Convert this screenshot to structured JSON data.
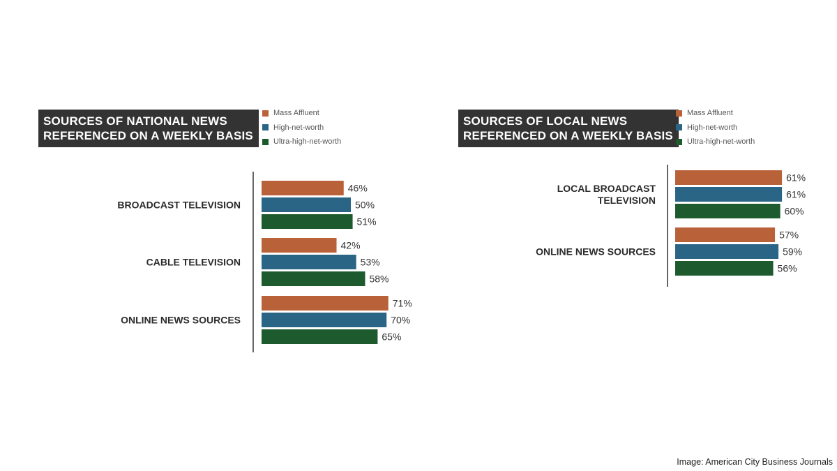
{
  "colors": {
    "mass_affluent": "#b9623a",
    "high_net_worth": "#2a6585",
    "ultra_high_net_worth": "#1d5a2e",
    "title_bg": "#333333",
    "axis": "#333333"
  },
  "credit": "Image: American City Business Journals",
  "chart_data": [
    {
      "type": "bar",
      "orientation": "horizontal",
      "title": "SOURCES OF NATIONAL NEWS\nREFERENCED ON A WEEKLY BASIS",
      "legend_placement": "top-right",
      "grid": false,
      "value_suffix": "%",
      "categories": [
        "BROADCAST TELEVISION",
        "CABLE TELEVISION",
        "ONLINE NEWS SOURCES"
      ],
      "series": [
        {
          "name": "Mass Affluent",
          "color": "#b9623a",
          "values": [
            46,
            42,
            71
          ]
        },
        {
          "name": "High-net-worth",
          "color": "#2a6585",
          "values": [
            50,
            53,
            70
          ]
        },
        {
          "name": "Ultra-high-net-worth",
          "color": "#1d5a2e",
          "values": [
            51,
            58,
            65
          ]
        }
      ]
    },
    {
      "type": "bar",
      "orientation": "horizontal",
      "title": "SOURCES OF LOCAL NEWS\nREFERENCED ON A WEEKLY BASIS",
      "legend_placement": "top-right",
      "grid": false,
      "value_suffix": "%",
      "categories": [
        "LOCAL BROADCAST\nTELEVISION",
        "ONLINE NEWS SOURCES"
      ],
      "series": [
        {
          "name": "Mass Affluent",
          "color": "#b9623a",
          "values": [
            61,
            57
          ]
        },
        {
          "name": "High-net-worth",
          "color": "#2a6585",
          "values": [
            61,
            59
          ]
        },
        {
          "name": "Ultra-high-net-worth",
          "color": "#1d5a2e",
          "values": [
            60,
            56
          ]
        }
      ]
    }
  ]
}
